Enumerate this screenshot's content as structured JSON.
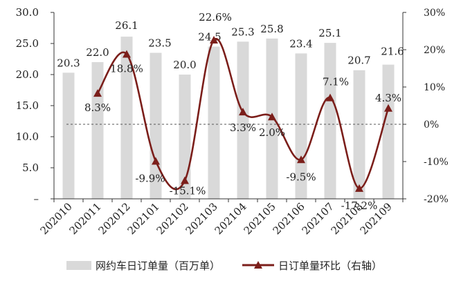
{
  "colors": {
    "bar": "#d9d9d9",
    "line": "#7b1e1a",
    "zero_line": "#555555",
    "text": "#222222"
  },
  "chart_data": {
    "type": "bar+line",
    "categories": [
      "202010",
      "202011",
      "202012",
      "202101",
      "202102",
      "202103",
      "202104",
      "202105",
      "202106",
      "202107",
      "202108",
      "202109"
    ],
    "series": [
      {
        "name": "网约车日订单量（百万单）",
        "type": "bar",
        "axis": "left",
        "values": [
          20.3,
          22.0,
          26.1,
          23.5,
          20.0,
          24.5,
          25.3,
          25.8,
          23.4,
          25.1,
          20.7,
          21.6
        ],
        "labels": [
          "20.3",
          "22.0",
          "26.1",
          "23.5",
          "20.0",
          "24.5",
          "25.3",
          "25.8",
          "23.4",
          "25.1",
          "20.7",
          "21.6"
        ]
      },
      {
        "name": "日订单量环比（右轴）",
        "type": "line",
        "axis": "right",
        "values": [
          null,
          8.3,
          18.8,
          -9.9,
          -15.1,
          22.6,
          3.3,
          2.0,
          -9.5,
          7.1,
          -17.2,
          4.3
        ],
        "labels": [
          "",
          "8.3%",
          "18.8%",
          "-9.9%",
          "-15.1%",
          "22.6%",
          "3.3%",
          "2.0%",
          "-9.5%",
          "7.1%",
          "-17.2%",
          "4.3%"
        ]
      }
    ],
    "y_left": {
      "lim": [
        0,
        30
      ],
      "ticks": [
        0,
        5,
        10,
        15,
        20,
        25,
        30
      ],
      "tick_labels": [
        "–",
        "5.0",
        "10.0",
        "15.0",
        "20.0",
        "25.0",
        "30.0"
      ]
    },
    "y_right": {
      "lim": [
        -20,
        30
      ],
      "ticks": [
        -20,
        -10,
        0,
        10,
        20,
        30
      ],
      "tick_labels": [
        "-20%",
        "-10%",
        "0%",
        "10%",
        "20%",
        "30%"
      ],
      "reference_line": 0
    },
    "legend": {
      "position": "bottom",
      "bar_label": "网约车日订单量（百万单）",
      "line_label": "日订单量环比（右轴）"
    }
  }
}
